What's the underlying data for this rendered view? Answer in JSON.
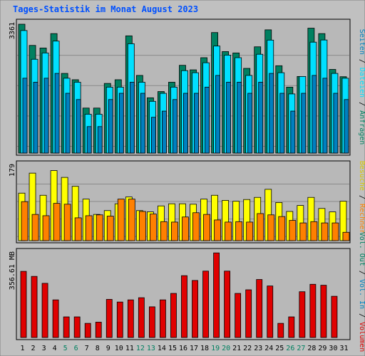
{
  "title": "Tages-Statistik im Monat August 2023",
  "colors": {
    "background": "#c0c0c0",
    "panel": "#b8b8b8",
    "anfragen": "#008060",
    "dateien": "#00e0ff",
    "seiten": "#0080c0",
    "besuche": "#ffff00",
    "rechner": "#ff8000",
    "volumen": "#e00000",
    "title": "#0050ff",
    "weekend": "#008060"
  },
  "chart_data": [
    {
      "type": "bar",
      "title": "",
      "y_tick_label": "3361",
      "ylim": [
        0,
        3361
      ],
      "grid": true,
      "legend": "right",
      "categories": [
        "1",
        "2",
        "3",
        "4",
        "5",
        "6",
        "7",
        "8",
        "9",
        "10",
        "11",
        "12",
        "13",
        "14",
        "15",
        "16",
        "17",
        "18",
        "19",
        "20",
        "21",
        "22",
        "23",
        "24",
        "25",
        "26",
        "27",
        "28",
        "29",
        "30",
        "31"
      ],
      "series": [
        {
          "name": "Anfragen",
          "values": [
            3361,
            2814,
            2747,
            3119,
            2092,
            1929,
            1198,
            1198,
            1834,
            1929,
            3061,
            2040,
            1463,
            1624,
            1865,
            2301,
            2184,
            2498,
            3146,
            2655,
            2620,
            2222,
            2778,
            3216,
            2290,
            1738,
            2013,
            3259,
            3119,
            2195,
            2007
          ]
        },
        {
          "name": "Dateien",
          "values": [
            3198,
            2457,
            2620,
            2926,
            1968,
            1865,
            1040,
            1040,
            1738,
            1738,
            2858,
            1865,
            1372,
            1578,
            1738,
            2164,
            2110,
            2367,
            2798,
            2563,
            2498,
            2040,
            2586,
            2951,
            2110,
            1563,
            2013,
            2898,
            2954,
            2092,
            1968
          ]
        },
        {
          "name": "Seiten",
          "values": [
            1968,
            1865,
            1968,
            2092,
            1579,
            1418,
            720,
            720,
            1418,
            1579,
            1865,
            1579,
            960,
            1119,
            1418,
            1579,
            1579,
            1738,
            2040,
            1865,
            1865,
            1579,
            1865,
            2092,
            1579,
            1119,
            1579,
            2040,
            1968,
            1579,
            1418
          ]
        }
      ]
    },
    {
      "type": "bar",
      "title": "",
      "y_tick_label": "179",
      "ylim": [
        0,
        179
      ],
      "grid": true,
      "legend": "right",
      "categories": [
        "1",
        "2",
        "3",
        "4",
        "5",
        "6",
        "7",
        "8",
        "9",
        "10",
        "11",
        "12",
        "13",
        "14",
        "15",
        "16",
        "17",
        "18",
        "19",
        "20",
        "21",
        "22",
        "23",
        "24",
        "25",
        "26",
        "27",
        "28",
        "29",
        "30",
        "31"
      ],
      "series": [
        {
          "name": "Besuche",
          "values": [
            115,
            162,
            110,
            168,
            152,
            131,
            101,
            65,
            74,
            90,
            106,
            74,
            71,
            85,
            90,
            90,
            89,
            101,
            110,
            98,
            96,
            100,
            105,
            124,
            93,
            72,
            86,
            105,
            79,
            71,
            96
          ]
        },
        {
          "name": "Rechner",
          "values": [
            95,
            65,
            62,
            91,
            89,
            57,
            62,
            64,
            61,
            101,
            101,
            72,
            66,
            48,
            47,
            59,
            69,
            65,
            52,
            47,
            48,
            47,
            67,
            64,
            60,
            51,
            45,
            48,
            45,
            45,
            23
          ]
        }
      ]
    },
    {
      "type": "bar",
      "title": "",
      "y_tick_label": "356.61 MB",
      "ylim": [
        0,
        356.61
      ],
      "grid": false,
      "legend": "right",
      "categories": [
        "1",
        "2",
        "3",
        "4",
        "5",
        "6",
        "7",
        "8",
        "9",
        "10",
        "11",
        "12",
        "13",
        "14",
        "15",
        "16",
        "17",
        "18",
        "19",
        "20",
        "21",
        "22",
        "23",
        "24",
        "25",
        "26",
        "27",
        "28",
        "29",
        "30",
        "31"
      ],
      "series": [
        {
          "name": "Volumen",
          "values": [
            282,
            261,
            232,
            163,
            92,
            92,
            65,
            70,
            165,
            154,
            163,
            172,
            134,
            163,
            190,
            264,
            244,
            283,
            359,
            283,
            190,
            205,
            248,
            221,
            65,
            92,
            197,
            228,
            224,
            178,
            0
          ]
        }
      ]
    }
  ],
  "legend_labels": {
    "anfragen": "Anfragen",
    "dateien": "Dateien",
    "seiten": "Seiten",
    "besuche": "Besuche",
    "rechner": "Rechner",
    "vol_out": "Vol. Out",
    "vol_in": "Vol. In",
    "volumen": "Volumen",
    "sep": "/"
  },
  "weekend_days": [
    5,
    6,
    12,
    13,
    19,
    20,
    26,
    27
  ]
}
